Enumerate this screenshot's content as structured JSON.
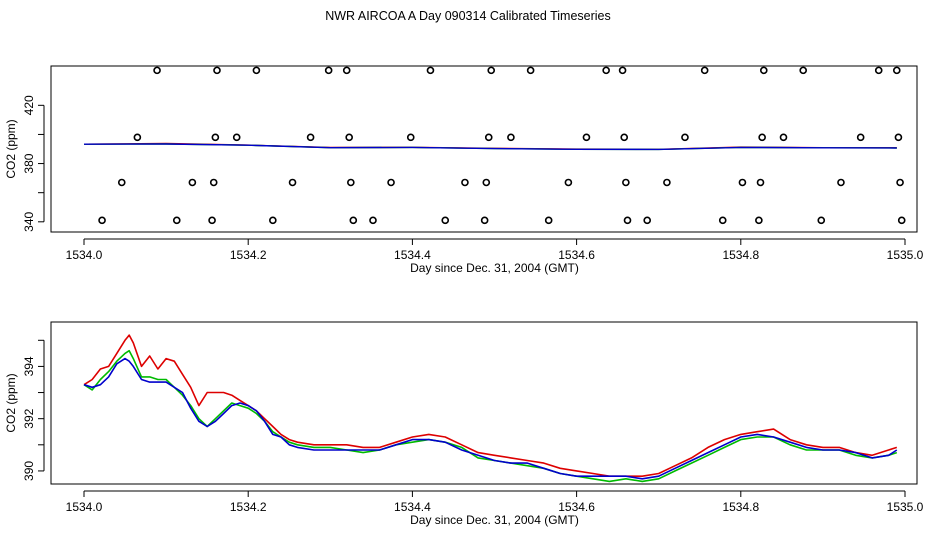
{
  "title": "NWR AIRCOA A  Day 090314  Calibrated Timeseries",
  "colors": {
    "red": "#dd0000",
    "green": "#00bb00",
    "blue": "#0000cc",
    "axis": "#000000"
  },
  "chart_data": [
    {
      "type": "scatter",
      "xlabel": "Day since Dec. 31, 2004 (GMT)",
      "ylabel": "CO2 (ppm)",
      "xlim": [
        1534.0,
        1535.0
      ],
      "ylim": [
        333,
        447
      ],
      "xticks": [
        "1534.0",
        "1534.2",
        "1534.4",
        "1534.6",
        "1534.8",
        "1535.0"
      ],
      "xtick_values": [
        1534.0,
        1534.2,
        1534.4,
        1534.6,
        1534.8,
        1535.0
      ],
      "yticks": [
        "340",
        "380",
        "420"
      ],
      "ytick_values": [
        340,
        380,
        420
      ],
      "y_minor_ticks": [
        360,
        400
      ],
      "points": [
        {
          "x": 1534.022,
          "y": 341
        },
        {
          "x": 1534.046,
          "y": 367
        },
        {
          "x": 1534.065,
          "y": 398
        },
        {
          "x": 1534.089,
          "y": 444
        },
        {
          "x": 1534.113,
          "y": 341
        },
        {
          "x": 1534.132,
          "y": 367
        },
        {
          "x": 1534.156,
          "y": 341
        },
        {
          "x": 1534.158,
          "y": 367
        },
        {
          "x": 1534.16,
          "y": 398
        },
        {
          "x": 1534.162,
          "y": 444
        },
        {
          "x": 1534.186,
          "y": 398
        },
        {
          "x": 1534.21,
          "y": 444
        },
        {
          "x": 1534.23,
          "y": 341
        },
        {
          "x": 1534.254,
          "y": 367
        },
        {
          "x": 1534.276,
          "y": 398
        },
        {
          "x": 1534.298,
          "y": 444
        },
        {
          "x": 1534.32,
          "y": 444
        },
        {
          "x": 1534.323,
          "y": 398
        },
        {
          "x": 1534.325,
          "y": 367
        },
        {
          "x": 1534.328,
          "y": 341
        },
        {
          "x": 1534.352,
          "y": 341
        },
        {
          "x": 1534.374,
          "y": 367
        },
        {
          "x": 1534.398,
          "y": 398
        },
        {
          "x": 1534.422,
          "y": 444
        },
        {
          "x": 1534.44,
          "y": 341
        },
        {
          "x": 1534.464,
          "y": 367
        },
        {
          "x": 1534.488,
          "y": 341
        },
        {
          "x": 1534.49,
          "y": 367
        },
        {
          "x": 1534.493,
          "y": 398
        },
        {
          "x": 1534.496,
          "y": 444
        },
        {
          "x": 1534.52,
          "y": 398
        },
        {
          "x": 1534.544,
          "y": 444
        },
        {
          "x": 1534.566,
          "y": 341
        },
        {
          "x": 1534.59,
          "y": 367
        },
        {
          "x": 1534.612,
          "y": 398
        },
        {
          "x": 1534.636,
          "y": 444
        },
        {
          "x": 1534.656,
          "y": 444
        },
        {
          "x": 1534.658,
          "y": 398
        },
        {
          "x": 1534.66,
          "y": 367
        },
        {
          "x": 1534.662,
          "y": 341
        },
        {
          "x": 1534.686,
          "y": 341
        },
        {
          "x": 1534.71,
          "y": 367
        },
        {
          "x": 1534.732,
          "y": 398
        },
        {
          "x": 1534.756,
          "y": 444
        },
        {
          "x": 1534.778,
          "y": 341
        },
        {
          "x": 1534.802,
          "y": 367
        },
        {
          "x": 1534.822,
          "y": 341
        },
        {
          "x": 1534.824,
          "y": 367
        },
        {
          "x": 1534.826,
          "y": 398
        },
        {
          "x": 1534.828,
          "y": 444
        },
        {
          "x": 1534.852,
          "y": 398
        },
        {
          "x": 1534.876,
          "y": 444
        },
        {
          "x": 1534.898,
          "y": 341
        },
        {
          "x": 1534.922,
          "y": 367
        },
        {
          "x": 1534.946,
          "y": 398
        },
        {
          "x": 1534.968,
          "y": 444
        },
        {
          "x": 1534.99,
          "y": 444
        },
        {
          "x": 1534.992,
          "y": 398
        },
        {
          "x": 1534.994,
          "y": 367
        },
        {
          "x": 1534.996,
          "y": 341
        }
      ],
      "series": [
        {
          "color": "#dd0000",
          "x": [
            1534.0,
            1534.1,
            1534.2,
            1534.3,
            1534.4,
            1534.5,
            1534.6,
            1534.7,
            1534.8,
            1534.9,
            1534.99
          ],
          "y": [
            393.3,
            393.8,
            392.7,
            391.0,
            391.2,
            390.5,
            389.9,
            389.8,
            391.3,
            390.9,
            390.9
          ]
        },
        {
          "color": "#00bb00",
          "x": [
            1534.0,
            1534.1,
            1534.2,
            1534.3,
            1534.4,
            1534.5,
            1534.6,
            1534.7,
            1534.8,
            1534.9,
            1534.99
          ],
          "y": [
            393.3,
            393.4,
            392.6,
            390.9,
            391.1,
            390.3,
            389.8,
            389.7,
            391.1,
            390.8,
            390.7
          ]
        },
        {
          "color": "#0000cc",
          "x": [
            1534.0,
            1534.1,
            1534.2,
            1534.3,
            1534.4,
            1534.5,
            1534.6,
            1534.7,
            1534.8,
            1534.9,
            1534.99
          ],
          "y": [
            393.3,
            393.4,
            392.6,
            390.9,
            391.1,
            390.3,
            389.8,
            389.7,
            391.1,
            390.8,
            390.7
          ]
        }
      ]
    },
    {
      "type": "line",
      "xlabel": "Day since Dec. 31, 2004 (GMT)",
      "ylabel": "CO2 (ppm)",
      "xlim": [
        1534.0,
        1535.0
      ],
      "ylim": [
        389.5,
        395.7
      ],
      "xticks": [
        "1534.0",
        "1534.2",
        "1534.4",
        "1534.6",
        "1534.8",
        "1535.0"
      ],
      "xtick_values": [
        1534.0,
        1534.2,
        1534.4,
        1534.6,
        1534.8,
        1535.0
      ],
      "yticks": [
        "390",
        "392",
        "394"
      ],
      "ytick_values": [
        390,
        392,
        394
      ],
      "y_minor_ticks": [
        391,
        393,
        395
      ],
      "series": [
        {
          "color": "#dd0000",
          "x": [
            1534.0,
            1534.01,
            1534.02,
            1534.03,
            1534.04,
            1534.05,
            1534.055,
            1534.06,
            1534.07,
            1534.08,
            1534.09,
            1534.1,
            1534.11,
            1534.12,
            1534.13,
            1534.14,
            1534.15,
            1534.16,
            1534.17,
            1534.18,
            1534.19,
            1534.2,
            1534.21,
            1534.22,
            1534.23,
            1534.24,
            1534.25,
            1534.26,
            1534.28,
            1534.3,
            1534.32,
            1534.34,
            1534.36,
            1534.38,
            1534.4,
            1534.42,
            1534.44,
            1534.46,
            1534.48,
            1534.5,
            1534.52,
            1534.54,
            1534.56,
            1534.58,
            1534.6,
            1534.62,
            1534.64,
            1534.66,
            1534.68,
            1534.7,
            1534.72,
            1534.74,
            1534.76,
            1534.78,
            1534.8,
            1534.82,
            1534.84,
            1534.86,
            1534.88,
            1534.9,
            1534.92,
            1534.94,
            1534.96,
            1534.98,
            1534.99
          ],
          "y": [
            393.3,
            393.5,
            393.9,
            394.0,
            394.5,
            395.0,
            395.2,
            394.9,
            394.0,
            394.4,
            393.9,
            394.3,
            394.2,
            393.7,
            393.2,
            392.5,
            393.0,
            393.0,
            393.0,
            392.9,
            392.7,
            392.5,
            392.3,
            392.0,
            391.7,
            391.4,
            391.2,
            391.1,
            391.0,
            391.0,
            391.0,
            390.9,
            390.9,
            391.1,
            391.3,
            391.4,
            391.3,
            391.0,
            390.7,
            390.6,
            390.5,
            390.4,
            390.3,
            390.1,
            390.0,
            389.9,
            389.8,
            389.8,
            389.8,
            389.9,
            390.2,
            390.5,
            390.9,
            391.2,
            391.4,
            391.5,
            391.6,
            391.2,
            391.0,
            390.9,
            390.9,
            390.7,
            390.6,
            390.8,
            390.9
          ]
        },
        {
          "color": "#00bb00",
          "x": [
            1534.0,
            1534.01,
            1534.02,
            1534.03,
            1534.04,
            1534.05,
            1534.055,
            1534.06,
            1534.07,
            1534.08,
            1534.09,
            1534.1,
            1534.11,
            1534.12,
            1534.13,
            1534.14,
            1534.15,
            1534.16,
            1534.17,
            1534.18,
            1534.19,
            1534.2,
            1534.21,
            1534.22,
            1534.23,
            1534.24,
            1534.25,
            1534.26,
            1534.28,
            1534.3,
            1534.32,
            1534.34,
            1534.36,
            1534.38,
            1534.4,
            1534.42,
            1534.44,
            1534.46,
            1534.48,
            1534.5,
            1534.52,
            1534.54,
            1534.56,
            1534.58,
            1534.6,
            1534.62,
            1534.64,
            1534.66,
            1534.68,
            1534.7,
            1534.72,
            1534.74,
            1534.76,
            1534.78,
            1534.8,
            1534.82,
            1534.84,
            1534.86,
            1534.88,
            1534.9,
            1534.92,
            1534.94,
            1534.96,
            1534.98,
            1534.99
          ],
          "y": [
            393.3,
            393.1,
            393.5,
            393.8,
            394.2,
            394.5,
            394.6,
            394.3,
            393.6,
            393.6,
            393.5,
            393.5,
            393.2,
            392.9,
            392.5,
            392.0,
            391.7,
            392.0,
            392.3,
            392.6,
            392.5,
            392.4,
            392.2,
            391.9,
            391.5,
            391.3,
            391.1,
            391.0,
            390.9,
            390.9,
            390.8,
            390.7,
            390.8,
            391.0,
            391.1,
            391.2,
            391.1,
            390.9,
            390.5,
            390.4,
            390.3,
            390.2,
            390.1,
            389.9,
            389.8,
            389.7,
            389.6,
            389.7,
            389.6,
            389.7,
            390.0,
            390.3,
            390.6,
            390.9,
            391.2,
            391.3,
            391.3,
            391.0,
            390.8,
            390.8,
            390.8,
            390.6,
            390.5,
            390.6,
            390.7
          ]
        },
        {
          "color": "#0000cc",
          "x": [
            1534.0,
            1534.01,
            1534.02,
            1534.03,
            1534.04,
            1534.05,
            1534.055,
            1534.06,
            1534.07,
            1534.08,
            1534.09,
            1534.1,
            1534.11,
            1534.12,
            1534.13,
            1534.14,
            1534.15,
            1534.16,
            1534.17,
            1534.18,
            1534.19,
            1534.2,
            1534.21,
            1534.22,
            1534.23,
            1534.24,
            1534.25,
            1534.26,
            1534.28,
            1534.3,
            1534.32,
            1534.34,
            1534.36,
            1534.38,
            1534.4,
            1534.42,
            1534.44,
            1534.46,
            1534.48,
            1534.5,
            1534.52,
            1534.54,
            1534.56,
            1534.58,
            1534.6,
            1534.62,
            1534.64,
            1534.66,
            1534.68,
            1534.7,
            1534.72,
            1534.74,
            1534.76,
            1534.78,
            1534.8,
            1534.82,
            1534.84,
            1534.86,
            1534.88,
            1534.9,
            1534.92,
            1534.94,
            1534.96,
            1534.98,
            1534.99
          ],
          "y": [
            393.3,
            393.2,
            393.3,
            393.6,
            394.1,
            394.3,
            394.2,
            394.0,
            393.5,
            393.4,
            393.4,
            393.4,
            393.2,
            393.0,
            392.4,
            391.9,
            391.7,
            391.9,
            392.2,
            392.5,
            392.6,
            392.5,
            392.3,
            391.9,
            391.4,
            391.3,
            391.0,
            390.9,
            390.8,
            390.8,
            390.8,
            390.8,
            390.8,
            391.0,
            391.2,
            391.2,
            391.1,
            390.8,
            390.6,
            390.4,
            390.3,
            390.3,
            390.1,
            389.9,
            389.8,
            389.8,
            389.8,
            389.8,
            389.7,
            389.8,
            390.1,
            390.4,
            390.7,
            391.0,
            391.3,
            391.4,
            391.3,
            391.1,
            390.9,
            390.8,
            390.8,
            390.7,
            390.5,
            390.6,
            390.8
          ]
        }
      ]
    }
  ]
}
